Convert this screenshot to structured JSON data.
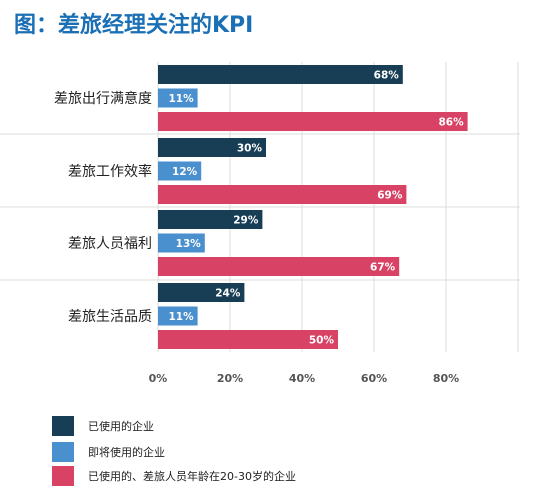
{
  "chart_data": {
    "type": "bar",
    "orientation": "horizontal",
    "title": "图：差旅经理关注的KPI",
    "categories": [
      "差旅出行满意度",
      "差旅工作效率",
      "差旅人员福利",
      "差旅生活品质"
    ],
    "series": [
      {
        "name": "已使用的企业",
        "color": "#173e55",
        "values": [
          68,
          30,
          29,
          24
        ]
      },
      {
        "name": "即将使用的企业",
        "color": "#4a8fce",
        "values": [
          11,
          12,
          13,
          11
        ]
      },
      {
        "name": "已使用的、差旅人员年龄在20-30岁的企业",
        "color": "#d84265",
        "values": [
          86,
          69,
          67,
          50
        ]
      }
    ],
    "xlim": [
      0,
      100
    ],
    "xticks": [
      0,
      20,
      40,
      60,
      80
    ],
    "tick_labels": [
      "0%",
      "20%",
      "40%",
      "60%",
      "80%"
    ],
    "value_suffix": "%",
    "grid": true,
    "legend_position": "bottom-left",
    "title_color": "#1a6fb5"
  }
}
